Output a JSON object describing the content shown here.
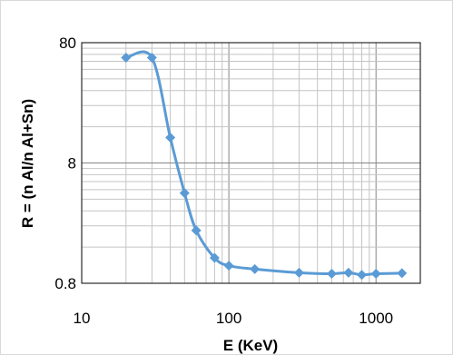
{
  "chart_data": {
    "type": "scatter",
    "xlabel": "E  (KeV)",
    "ylabel": "R = (n Al/n Al+Sn)",
    "x_scale": "log",
    "y_scale": "log",
    "xlim": [
      10,
      2000
    ],
    "ylim": [
      0.8,
      80
    ],
    "x_ticks": [
      10,
      100,
      1000
    ],
    "x_tick_labels": [
      "10",
      "100",
      "1000"
    ],
    "y_ticks": [
      0.8,
      8,
      80
    ],
    "y_tick_labels": [
      "0.8",
      "8",
      "80"
    ],
    "grid": true,
    "legend": "none",
    "series": [
      {
        "x": [
          20,
          30,
          40,
          50,
          60,
          80,
          100,
          150,
          300,
          500,
          650,
          800,
          1000,
          1500
        ],
        "y": [
          60,
          60,
          13,
          4.5,
          2.2,
          1.3,
          1.12,
          1.05,
          0.98,
          0.96,
          0.98,
          0.94,
          0.96,
          0.97
        ],
        "color": "#5B9BD5",
        "marker": "diamond",
        "line": "smooth"
      }
    ],
    "colors": {
      "line": "#5B9BD5",
      "grid_major": "#868686",
      "grid_minor": "#c4c4c4",
      "frame": "#000000"
    }
  }
}
